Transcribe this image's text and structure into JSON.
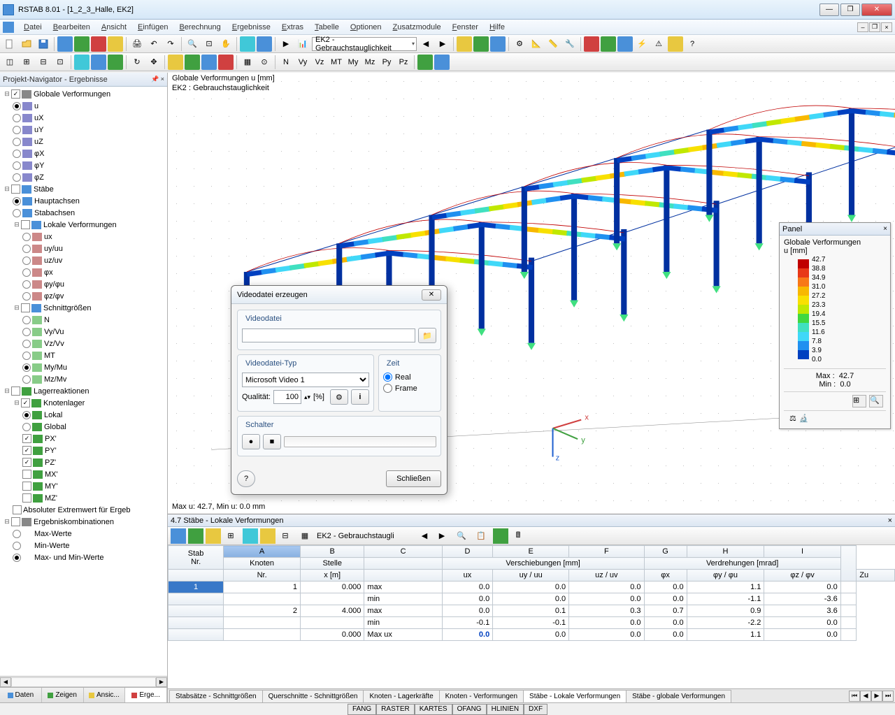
{
  "window": {
    "title": "RSTAB 8.01 - [1_2_3_Halle, EK2]"
  },
  "menu": [
    "Datei",
    "Bearbeiten",
    "Ansicht",
    "Einfügen",
    "Berechnung",
    "Ergebnisse",
    "Extras",
    "Tabelle",
    "Optionen",
    "Zusatzmodule",
    "Fenster",
    "Hilfe"
  ],
  "toolbar_combo1": "EK2 - Gebrauchstauglichkeit",
  "sidebar": {
    "title": "Projekt-Navigator - Ergebnisse",
    "tabs": [
      "Daten",
      "Zeigen",
      "Ansic...",
      "Erge..."
    ],
    "active_tab": 3,
    "tree_root": "Globale Verformungen",
    "tree_items_deform": [
      "u",
      "uX",
      "uY",
      "uZ",
      "φX",
      "φY",
      "φZ"
    ],
    "tree_items_deform_sel": 0,
    "staebe": "Stäbe",
    "hauptachsen": "Hauptachsen",
    "stabachsen": "Stabachsen",
    "lokale": "Lokale Verformungen",
    "lokale_items": [
      "ux",
      "uy/uu",
      "uz/uv",
      "φx",
      "φy/φu",
      "φz/φv"
    ],
    "schnitt": "Schnittgrößen",
    "schnitt_items": [
      "N",
      "Vy/Vu",
      "Vz/Vv",
      "MT",
      "My/Mu",
      "Mz/Mv"
    ],
    "schnitt_sel": 4,
    "lager": "Lagerreaktionen",
    "knotenlager": "Knotenlager",
    "lokal": "Lokal",
    "global": "Global",
    "p_items": [
      "PX'",
      "PY'",
      "PZ'",
      "MX'",
      "MY'",
      "MZ'"
    ],
    "extremwert": "Absoluter Extremwert für Ergeb",
    "kombis": "Ergebniskombinationen",
    "maxwerte": "Max-Werte",
    "minwerte": "Min-Werte",
    "maxmin": "Max- und Min-Werte"
  },
  "viewport": {
    "label1": "Globale Verformungen u [mm]",
    "label2": "EK2 : Gebrauchstauglichkeit",
    "label3": "Max u: 42.7, Min u: 0.0 mm"
  },
  "panel": {
    "title": "Panel",
    "heading": "Globale Verformungen",
    "unit": "u [mm]",
    "colors": [
      "#c00000",
      "#e83818",
      "#f87818",
      "#f8b800",
      "#f8e000",
      "#c0e800",
      "#40d840",
      "#40e0c0",
      "#40d8f8",
      "#2090f0",
      "#0040c0"
    ],
    "values": [
      "42.7",
      "38.8",
      "34.9",
      "31.0",
      "27.2",
      "23.3",
      "19.4",
      "15.5",
      "11.6",
      "7.8",
      "3.9",
      "0.0"
    ],
    "max_lbl": "Max  :",
    "max_val": "42.7",
    "min_lbl": "Min   :",
    "min_val": "0.0"
  },
  "dialog": {
    "title": "Videodatei erzeugen",
    "grp_file": "Videodatei",
    "grp_type": "Videodatei-Typ",
    "type_val": "Microsoft Video 1",
    "qual_lbl": "Qualität:",
    "qual_val": "100",
    "qual_unit": "[%]",
    "grp_time": "Zeit",
    "time_real": "Real",
    "time_frame": "Frame",
    "grp_switch": "Schalter",
    "close": "Schließen"
  },
  "table": {
    "title": "4.7 Stäbe - Lokale Verformungen",
    "combo": "EK2 - Gebrauchstaugli",
    "col_letters": [
      "A",
      "B",
      "C",
      "D",
      "E",
      "F",
      "G",
      "H",
      "I"
    ],
    "headers1": {
      "stab": "Stab",
      "knoten": "Knoten",
      "stelle": "Stelle",
      "versch": "Verschiebungen [mm]",
      "verdr": "Verdrehungen [mrad]"
    },
    "headers2": {
      "nr1": "Nr.",
      "nr2": "Nr.",
      "x": "x [m]",
      "ux": "ux",
      "uy": "uy / uu",
      "uz": "uz / uv",
      "phx": "φx",
      "phy": "φy / φu",
      "phz": "φz / φv",
      "zu": "Zu"
    },
    "rows": [
      {
        "stab": "1",
        "knoten": "1",
        "x": "0.000",
        "tag": "max",
        "ux": "0.0",
        "uy": "0.0",
        "uz": "0.0",
        "px": "0.0",
        "py": "1.1",
        "pz": "0.0"
      },
      {
        "stab": "",
        "knoten": "",
        "x": "",
        "tag": "min",
        "ux": "0.0",
        "uy": "0.0",
        "uz": "0.0",
        "px": "0.0",
        "py": "-1.1",
        "pz": "-3.6"
      },
      {
        "stab": "",
        "knoten": "2",
        "x": "4.000",
        "tag": "max",
        "ux": "0.0",
        "uy": "0.1",
        "uz": "0.3",
        "px": "0.7",
        "py": "0.9",
        "pz": "3.6"
      },
      {
        "stab": "",
        "knoten": "",
        "x": "",
        "tag": "min",
        "ux": "-0.1",
        "uy": "-0.1",
        "uz": "0.0",
        "px": "0.0",
        "py": "-2.2",
        "pz": "0.0"
      },
      {
        "stab": "",
        "knoten": "",
        "x": "0.000",
        "tag": "Max ux",
        "ux": "0.0",
        "uy": "0.0",
        "uz": "0.0",
        "px": "0.0",
        "py": "1.1",
        "pz": "0.0",
        "bold": true
      }
    ],
    "tabs": [
      "Stabsätze - Schnittgrößen",
      "Querschnitte - Schnittgrößen",
      "Knoten - Lagerkräfte",
      "Knoten - Verformungen",
      "Stäbe - Lokale Verformungen",
      "Stäbe - globale Verformungen"
    ],
    "active_tab": 4
  },
  "status": [
    "FANG",
    "RASTER",
    "KARTES",
    "OFANG",
    "HLINIEN",
    "DXF"
  ]
}
